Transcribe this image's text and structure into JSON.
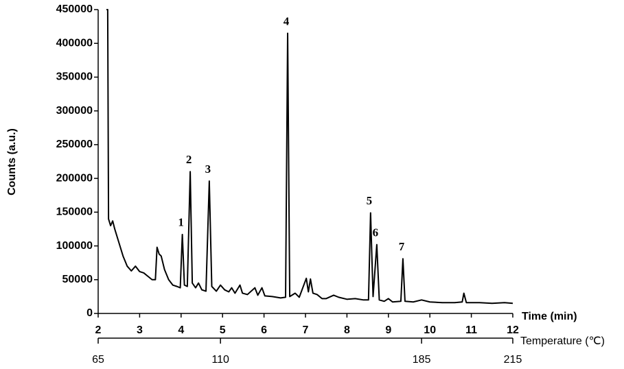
{
  "chart_data": {
    "type": "line",
    "y_label": "Counts (a.u.)",
    "x_label": "Time (min)",
    "x2_label": "Temperature (℃)",
    "color": "#000000",
    "xlim": [
      2,
      12
    ],
    "xticks": [
      2,
      3,
      4,
      5,
      6,
      7,
      8,
      9,
      10,
      11,
      12
    ],
    "ylim": [
      0,
      450000
    ],
    "yticks": [
      0,
      50000,
      100000,
      150000,
      200000,
      250000,
      300000,
      350000,
      400000,
      450000
    ],
    "x2lim": [
      2,
      12
    ],
    "x2ticks": [
      {
        "value": 2,
        "label": "65"
      },
      {
        "value": 4.95,
        "label": "110"
      },
      {
        "value": 9.8,
        "label": "185"
      },
      {
        "value": 12,
        "label": "215"
      }
    ],
    "x": [
      2.2,
      2.23,
      2.25,
      2.3,
      2.35,
      2.4,
      2.5,
      2.6,
      2.7,
      2.8,
      2.9,
      3.0,
      3.1,
      3.2,
      3.3,
      3.38,
      3.42,
      3.47,
      3.52,
      3.6,
      3.7,
      3.8,
      3.9,
      3.98,
      4.03,
      4.08,
      4.15,
      4.22,
      4.27,
      4.35,
      4.42,
      4.5,
      4.6,
      4.68,
      4.74,
      4.85,
      4.95,
      5.05,
      5.15,
      5.22,
      5.3,
      5.42,
      5.48,
      5.6,
      5.78,
      5.85,
      5.95,
      6.02,
      6.2,
      6.4,
      6.52,
      6.57,
      6.62,
      6.75,
      6.85,
      7.02,
      7.07,
      7.12,
      7.18,
      7.28,
      7.4,
      7.5,
      7.68,
      7.8,
      8.0,
      8.2,
      8.4,
      8.52,
      8.57,
      8.63,
      8.72,
      8.78,
      8.9,
      9.0,
      9.1,
      9.3,
      9.35,
      9.4,
      9.6,
      9.8,
      10.0,
      10.3,
      10.6,
      10.78,
      10.82,
      10.88,
      11.2,
      11.5,
      11.8,
      12.0
    ],
    "y": [
      450000,
      450000,
      140000,
      130000,
      137000,
      125000,
      105000,
      85000,
      70000,
      63000,
      70000,
      62000,
      60000,
      55000,
      50000,
      50000,
      98000,
      88000,
      85000,
      65000,
      50000,
      42000,
      40000,
      38000,
      117000,
      42000,
      40000,
      210000,
      45000,
      38000,
      45000,
      35000,
      33000,
      196000,
      40000,
      33000,
      42000,
      35000,
      32000,
      38000,
      30000,
      42000,
      30000,
      28000,
      38000,
      27000,
      38000,
      26000,
      25000,
      23000,
      24000,
      415000,
      25000,
      30000,
      24000,
      52000,
      32000,
      51000,
      30000,
      28000,
      22000,
      22000,
      27000,
      24000,
      21000,
      22000,
      20000,
      20000,
      149000,
      25000,
      102000,
      20000,
      18000,
      22000,
      17000,
      18000,
      81000,
      18000,
      17000,
      20000,
      17000,
      16000,
      16000,
      17000,
      30000,
      16000,
      16000,
      15000,
      16000,
      15000
    ],
    "peaks": [
      {
        "label": "1",
        "x": 4.03,
        "y": 117000
      },
      {
        "label": "2",
        "x": 4.22,
        "y": 210000
      },
      {
        "label": "3",
        "x": 4.68,
        "y": 196000
      },
      {
        "label": "4",
        "x": 6.57,
        "y": 415000
      },
      {
        "label": "5",
        "x": 8.57,
        "y": 149000
      },
      {
        "label": "6",
        "x": 8.72,
        "y": 102000
      },
      {
        "label": "7",
        "x": 9.35,
        "y": 81000
      }
    ]
  }
}
